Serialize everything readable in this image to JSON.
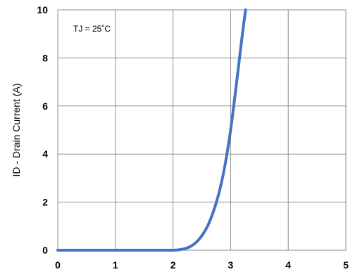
{
  "chart_data": {
    "type": "line",
    "title": "",
    "xlabel": "",
    "ylabel": "ID - Drain Current (A)",
    "xlim": [
      0,
      5
    ],
    "ylim": [
      0,
      10
    ],
    "x_ticks": [
      0,
      1,
      2,
      3,
      4,
      5
    ],
    "y_ticks": [
      0,
      2,
      4,
      6,
      8,
      10
    ],
    "x_tick_labels": [
      "0",
      "1",
      "2",
      "3",
      "4",
      "5"
    ],
    "y_tick_labels": [
      "0",
      "2",
      "4",
      "6",
      "8",
      "10"
    ],
    "grid": true,
    "annotation": "TJ = 25˚C",
    "series": [
      {
        "color": "#4472C4",
        "x": [
          0,
          0.5,
          1.0,
          1.5,
          2.0,
          2.1,
          2.2,
          2.3,
          2.4,
          2.5,
          2.6,
          2.7,
          2.8,
          2.9,
          3.0,
          3.1,
          3.2,
          3.26
        ],
        "y": [
          0,
          0,
          0,
          0,
          0,
          0.02,
          0.06,
          0.15,
          0.32,
          0.6,
          1.0,
          1.6,
          2.4,
          3.5,
          5.0,
          6.9,
          8.9,
          10.0
        ]
      }
    ]
  }
}
